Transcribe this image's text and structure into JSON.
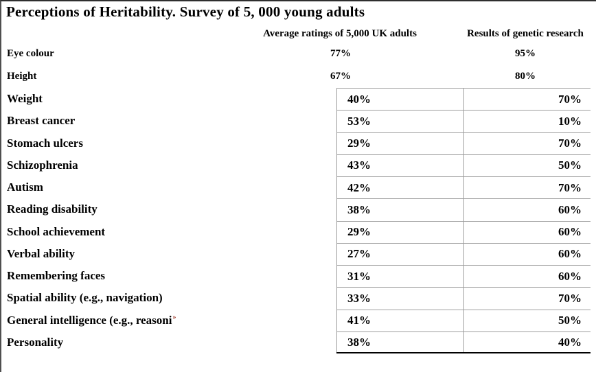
{
  "title": "Perceptions of Heritability. Survey of 5, 000 young adults",
  "columns": {
    "ratings_header": "Average ratings of 5,000 UK adults",
    "research_header": "Results of genetic research"
  },
  "unbordered_rows": [
    {
      "label": "Eye colour",
      "rating": "77%",
      "research": "95%"
    },
    {
      "label": "Height",
      "rating": "67%",
      "research": "80%"
    }
  ],
  "bordered_rows": [
    {
      "label": "Weight",
      "rating": "40%",
      "research": "70%"
    },
    {
      "label": "Breast cancer",
      "rating": "53%",
      "research": "10%"
    },
    {
      "label": "Stomach ulcers",
      "rating": "29%",
      "research": "70%"
    },
    {
      "label": "Schizophrenia",
      "rating": "43%",
      "research": "50%"
    },
    {
      "label": "Autism",
      "rating": "42%",
      "research": "70%"
    },
    {
      "label": "Reading disability",
      "rating": "38%",
      "research": "60%"
    },
    {
      "label": "School achievement",
      "rating": "29%",
      "research": "60%"
    },
    {
      "label": "Verbal ability",
      "rating": "27%",
      "research": "60%"
    },
    {
      "label": "Remembering faces",
      "rating": "31%",
      "research": "60%"
    },
    {
      "label": "Spatial ability (e.g., navigation)",
      "rating": "33%",
      "research": "70%"
    },
    {
      "label": "General intelligence (e.g., reasoni",
      "rating": "41%",
      "research": "50%"
    },
    {
      "label": "Personality",
      "rating": "38%",
      "research": "40%"
    }
  ],
  "truncation_mark": "»",
  "colors": {
    "background": "#ffffff",
    "text": "#000000",
    "grid_line": "#9c9c9c",
    "table_bottom_border": "#000000",
    "frame_top_border": "#2e2e2e",
    "frame_left_border": "#4f4f4f",
    "truncation_mark_color": "#9e3b2c"
  }
}
